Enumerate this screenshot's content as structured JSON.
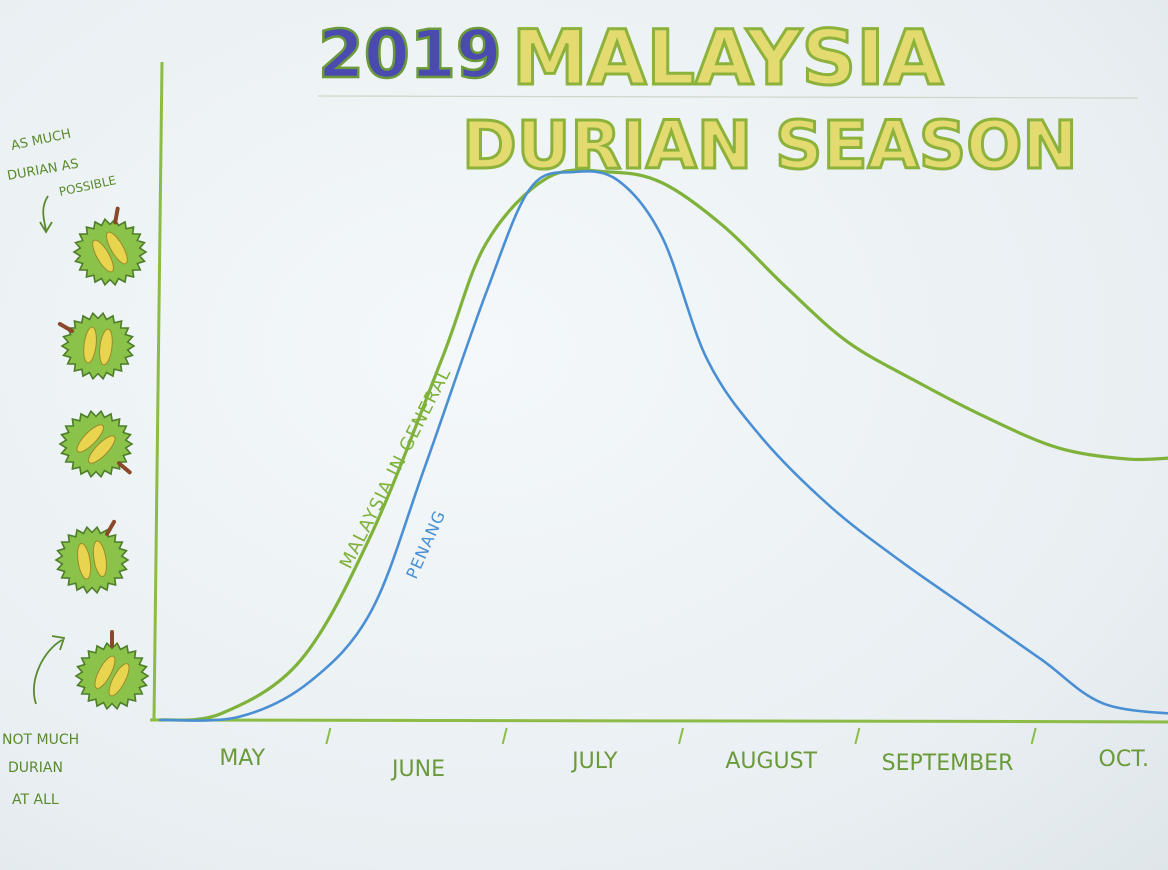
{
  "chart_data": {
    "type": "line",
    "title_year": "2019",
    "title_line1": "MALAYSIA",
    "title_line2": "DURIAN SEASON",
    "ylabel_top": [
      "AS MUCH",
      "DURIAN AS",
      "POSSIBLE"
    ],
    "ylabel_bottom": [
      "NOT MUCH",
      "DURIAN",
      "AT ALL"
    ],
    "categories": [
      "MAY",
      "JUNE",
      "JULY",
      "AUGUST",
      "SEPTEMBER",
      "OCT."
    ],
    "xlim": [
      0,
      6
    ],
    "ylim": [
      0,
      5
    ],
    "grid": false,
    "series": [
      {
        "name": "MALAYSIA IN GENERAL",
        "color": "#7fb23a",
        "x": [
          0.0,
          0.35,
          0.8,
          1.2,
          1.6,
          1.85,
          2.2,
          2.55,
          2.85,
          3.2,
          3.55,
          3.9,
          4.3,
          4.7,
          5.1,
          5.5,
          5.8
        ],
        "y": [
          0.0,
          0.06,
          0.55,
          1.7,
          3.3,
          4.35,
          4.95,
          5.0,
          4.9,
          4.5,
          3.95,
          3.45,
          3.08,
          2.75,
          2.48,
          2.38,
          2.4
        ]
      },
      {
        "name": "PENANG",
        "color": "#4a8fd4",
        "x": [
          0.0,
          0.45,
          0.85,
          1.2,
          1.5,
          1.85,
          2.1,
          2.35,
          2.6,
          2.85,
          3.1,
          3.4,
          3.8,
          4.2,
          4.6,
          5.0,
          5.35,
          5.8
        ],
        "y": [
          0.0,
          0.03,
          0.35,
          1.0,
          2.3,
          3.9,
          4.85,
          5.0,
          4.92,
          4.4,
          3.3,
          2.6,
          1.95,
          1.45,
          1.0,
          0.55,
          0.15,
          0.05
        ]
      }
    ],
    "icons": [
      "durian-icon",
      "durian-icon",
      "durian-icon",
      "durian-icon",
      "durian-icon"
    ],
    "colors": {
      "axis": "#8cbc45",
      "title_fill": "#e3da70",
      "title_outline": "#8cb23c",
      "year_fill": "#4b4ab0",
      "year_outline": "#6a9a3a",
      "durian_fill": "#8bc34a",
      "durian_inner": "#e8d44f",
      "durian_edge": "#4e7d2a"
    }
  }
}
